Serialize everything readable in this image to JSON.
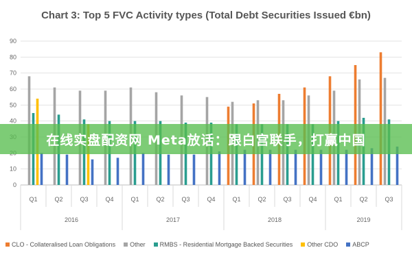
{
  "chart_data": {
    "type": "bar",
    "title": "Chart 3: Top 5 FVC Activity types (Total Debt Securities Issued €bn)",
    "ylim": [
      0,
      90
    ],
    "yticks": [
      "0",
      "10",
      "20",
      "30",
      "40",
      "50",
      "60",
      "70",
      "80",
      "90"
    ],
    "categories": [
      "Q1",
      "Q2",
      "Q3",
      "Q4",
      "Q1",
      "Q2",
      "Q3",
      "Q4",
      "Q1",
      "Q2",
      "Q3",
      "Q4",
      "Q1",
      "Q2",
      "Q3"
    ],
    "groups": [
      {
        "label": "2016",
        "count": 4
      },
      {
        "label": "2017",
        "count": 4
      },
      {
        "label": "2018",
        "count": 4
      },
      {
        "label": "2019",
        "count": 3
      }
    ],
    "grid": true,
    "legend_position": "bottom",
    "series": [
      {
        "name": "CLO - Collateralised Loan Obligations",
        "color": "#ED7D31",
        "values": [
          0,
          0,
          0,
          0,
          0,
          0,
          0,
          0,
          49,
          51,
          57,
          61,
          68,
          75,
          83
        ]
      },
      {
        "name": "Other",
        "color": "#A5A5A5",
        "values": [
          68,
          61,
          59,
          59,
          61,
          58,
          56,
          55,
          52,
          53,
          53,
          56,
          59,
          66,
          67
        ]
      },
      {
        "name": "RMBS - Residential Mortgage Backed Securities",
        "color": "#2A9D8F",
        "values": [
          45,
          44,
          41,
          40,
          40,
          40,
          39,
          39,
          38,
          38,
          38,
          38,
          40,
          42,
          41
        ]
      },
      {
        "name": "Other CDO",
        "color": "#FFC000",
        "values": [
          54,
          0,
          38,
          0,
          0,
          0,
          0,
          0,
          0,
          0,
          0,
          0,
          0,
          0,
          0
        ]
      },
      {
        "name": "ABCP",
        "color": "#4472C4",
        "values": [
          20,
          19,
          16,
          17,
          20,
          19,
          19,
          21,
          22,
          22,
          22,
          22,
          22,
          23,
          24
        ]
      }
    ]
  },
  "banner": {
    "text": "在线实盘配资网 Meta放话：跟白宫联手，打赢中国"
  }
}
